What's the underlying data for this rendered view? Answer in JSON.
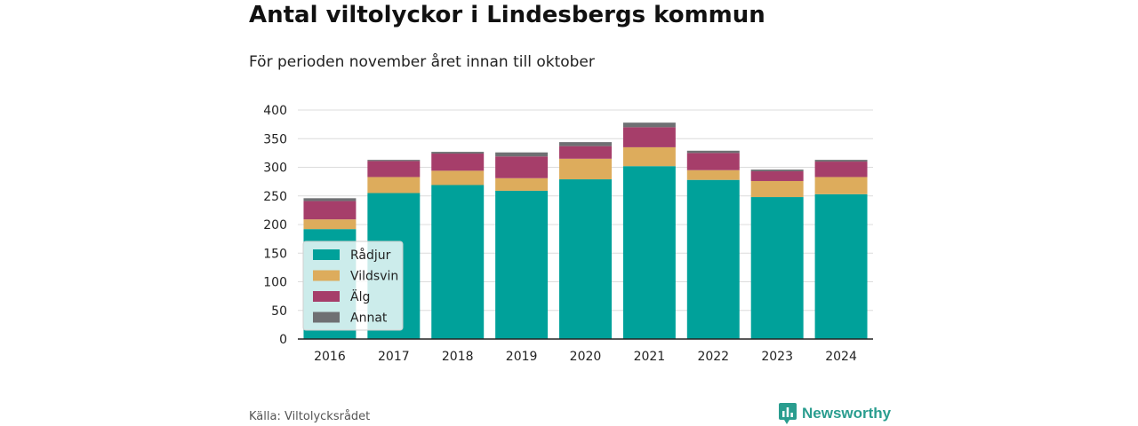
{
  "title": "Antal viltolyckor i Lindesbergs kommun",
  "subtitle": "För perioden november året innan till oktober",
  "source": "Källa: Viltolycksrådet",
  "brand": {
    "name": "Newsworthy",
    "icon": "newsworthy-logo-icon",
    "color": "#2a9d8f"
  },
  "chart_data": {
    "type": "bar",
    "stacked": true,
    "categories": [
      "2016",
      "2017",
      "2018",
      "2019",
      "2020",
      "2021",
      "2022",
      "2023",
      "2024"
    ],
    "series": [
      {
        "name": "Rådjur",
        "color": "#00a19a",
        "values": [
          192,
          255,
          269,
          259,
          279,
          302,
          278,
          248,
          253
        ]
      },
      {
        "name": "Vildsvin",
        "color": "#ddac5c",
        "values": [
          17,
          28,
          25,
          22,
          36,
          33,
          17,
          28,
          30
        ]
      },
      {
        "name": "Älg",
        "color": "#a63e6a",
        "values": [
          32,
          28,
          30,
          38,
          22,
          35,
          30,
          17,
          27
        ]
      },
      {
        "name": "Annat",
        "color": "#6f7073",
        "values": [
          5,
          2,
          3,
          7,
          7,
          8,
          4,
          3,
          3
        ]
      }
    ],
    "ylim": [
      0,
      400
    ],
    "yticks": [
      0,
      50,
      100,
      150,
      200,
      250,
      300,
      350,
      400
    ],
    "grid": true,
    "legend_position": "bottom-left",
    "xlabel": "",
    "ylabel": ""
  }
}
